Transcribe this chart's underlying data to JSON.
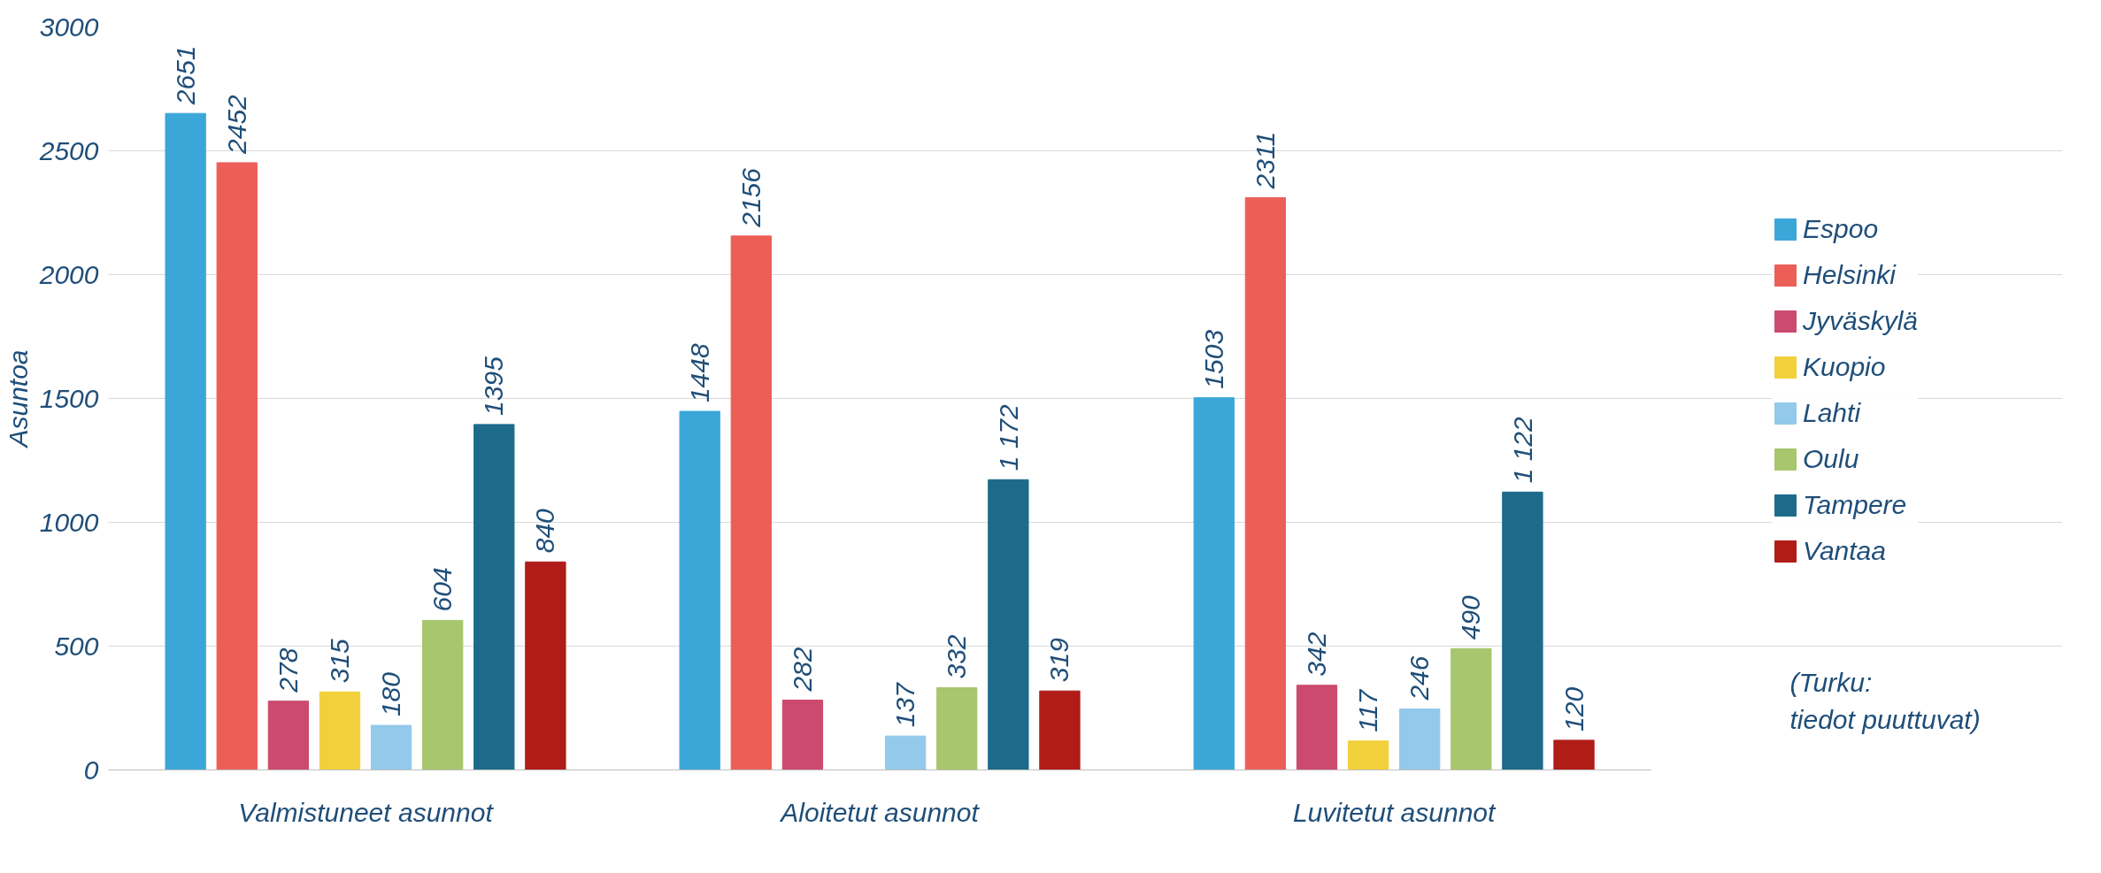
{
  "chart_data": {
    "type": "bar",
    "ylabel": "Asuntoa",
    "categories": [
      "Valmistuneet asunnot",
      "Aloitetut asunnot",
      "Luvitetut asunnot"
    ],
    "series": [
      {
        "name": "Espoo",
        "color": "#3ba7d9",
        "values": [
          2651,
          1448,
          1503
        ],
        "value_labels": [
          "2651",
          "1448",
          "1503"
        ]
      },
      {
        "name": "Helsinki",
        "color": "#ec5f57",
        "values": [
          2452,
          2156,
          2311
        ],
        "value_labels": [
          "2452",
          "2156",
          "2311"
        ]
      },
      {
        "name": "Jyväskylä",
        "color": "#cc4a6e",
        "values": [
          278,
          282,
          342
        ],
        "value_labels": [
          "278",
          "282",
          "342"
        ]
      },
      {
        "name": "Kuopio",
        "color": "#f2d03b",
        "values": [
          315,
          null,
          117
        ],
        "value_labels": [
          "315",
          null,
          "117"
        ]
      },
      {
        "name": "Lahti",
        "color": "#93c9ea",
        "values": [
          180,
          137,
          246
        ],
        "value_labels": [
          "180",
          "137",
          "246"
        ]
      },
      {
        "name": "Oulu",
        "color": "#a7c66d",
        "values": [
          604,
          332,
          490
        ],
        "value_labels": [
          "604",
          "332",
          "490"
        ]
      },
      {
        "name": "Tampere",
        "color": "#1d6a8a",
        "values": [
          1395,
          1172,
          1122
        ],
        "value_labels": [
          "1395",
          "1 172",
          "1 122"
        ]
      },
      {
        "name": "Vantaa",
        "color": "#b01c18",
        "values": [
          840,
          319,
          120
        ],
        "value_labels": [
          "840",
          "319",
          "120"
        ]
      }
    ],
    "ylim": [
      0,
      3000
    ],
    "yticks": [
      0,
      500,
      1000,
      1500,
      2000,
      2500,
      3000
    ],
    "grid": "y",
    "legend": "right",
    "annotations": [
      "(Turku:\ntiedot puuttuvat)"
    ]
  }
}
